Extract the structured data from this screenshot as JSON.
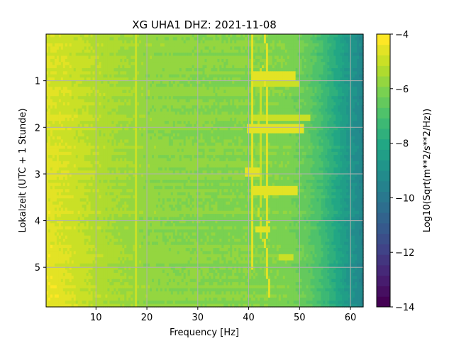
{
  "chart_data": {
    "type": "heatmap",
    "title": "XG UHA1  DHZ: 2021-11-08",
    "xlabel": "Frequency [Hz]",
    "ylabel": "Lokalzeit (UTC + 1 Stunde)",
    "xlim": [
      0.2,
      62.5
    ],
    "ylim": [
      5.85,
      0.0
    ],
    "xticks": [
      10,
      20,
      30,
      40,
      50,
      60
    ],
    "yticks": [
      1,
      2,
      3,
      4,
      5
    ],
    "grid": true,
    "colormap": "viridis",
    "colorbar": {
      "label": "Log10(Sqrt(m**2/s**2/Hz))",
      "range": [
        -14,
        -4
      ],
      "ticks": [
        -4,
        -6,
        -8,
        -10,
        -12,
        -14
      ],
      "levels": 26
    },
    "spectrum_profile": {
      "frequency_hz": [
        0,
        5,
        10,
        15,
        20,
        25,
        30,
        35,
        40,
        45,
        48,
        50,
        52,
        54,
        56,
        58,
        60,
        62.5
      ],
      "value": [
        -4.8,
        -5.0,
        -5.3,
        -5.55,
        -5.75,
        -5.85,
        -5.9,
        -5.95,
        -5.95,
        -6.0,
        -6.1,
        -6.3,
        -6.6,
        -7.0,
        -7.6,
        -8.2,
        -8.8,
        -9.4
      ]
    },
    "features": [
      {
        "kind": "line",
        "frequency_hz": 40.8,
        "time_from": 0.0,
        "time_to": 5.0,
        "value": -4.4
      },
      {
        "kind": "line",
        "frequency_hz": 18.0,
        "time_from": 0.0,
        "time_to": 5.85,
        "value": -5.0
      },
      {
        "kind": "drift",
        "points": [
          [
            43.3,
            0.0
          ],
          [
            43.6,
            0.6
          ],
          [
            43.2,
            1.0
          ],
          [
            43.8,
            1.5
          ],
          [
            43.4,
            2.0
          ],
          [
            43.6,
            2.8
          ],
          [
            43.4,
            3.5
          ],
          [
            43.8,
            4.0
          ],
          [
            43.3,
            4.5
          ],
          [
            43.7,
            5.0
          ],
          [
            44.0,
            5.6
          ]
        ],
        "value": -4.6
      },
      {
        "kind": "drift",
        "points": [
          [
            42.6,
            0.7
          ],
          [
            42.3,
            1.2
          ],
          [
            42.1,
            1.9
          ],
          [
            42.5,
            2.6
          ],
          [
            42.3,
            3.3
          ],
          [
            42.1,
            3.9
          ],
          [
            42.6,
            4.4
          ]
        ],
        "value": -4.8
      },
      {
        "kind": "burst",
        "frequency_from": 41.0,
        "frequency_to": 49.0,
        "time_from": 0.85,
        "time_to": 0.95,
        "value": -4.7
      },
      {
        "kind": "burst",
        "frequency_from": 40.5,
        "frequency_to": 50.0,
        "time_from": 1.0,
        "time_to": 1.08,
        "value": -4.8
      },
      {
        "kind": "burst",
        "frequency_from": 41.0,
        "frequency_to": 52.0,
        "time_from": 1.75,
        "time_to": 1.85,
        "value": -4.8
      },
      {
        "kind": "burst",
        "frequency_from": 40.0,
        "frequency_to": 50.5,
        "time_from": 1.95,
        "time_to": 2.1,
        "value": -4.7
      },
      {
        "kind": "burst",
        "frequency_from": 39.5,
        "frequency_to": 42.0,
        "time_from": 2.92,
        "time_to": 3.02,
        "value": -4.5
      },
      {
        "kind": "burst",
        "frequency_from": 41.0,
        "frequency_to": 49.5,
        "time_from": 3.3,
        "time_to": 3.42,
        "value": -4.6
      },
      {
        "kind": "burst",
        "frequency_from": 41.5,
        "frequency_to": 44.0,
        "time_from": 4.15,
        "time_to": 4.25,
        "value": -4.6
      },
      {
        "kind": "burst",
        "frequency_from": 46.0,
        "frequency_to": 48.5,
        "time_from": 4.75,
        "time_to": 4.82,
        "value": -4.9
      }
    ]
  }
}
